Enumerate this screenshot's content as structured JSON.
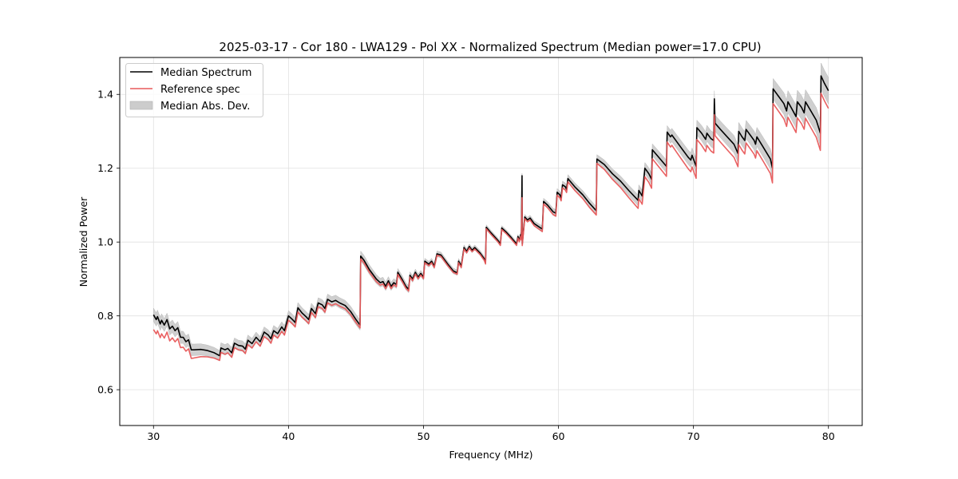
{
  "chart_data": {
    "type": "line",
    "title": "2025-03-17 - Cor 180 - LWA129 - Pol XX - Normalized Spectrum (Median power=17.0 CPU)",
    "xlabel": "Frequency (MHz)",
    "ylabel": "Normalized Power",
    "xlim": [
      27.5,
      82.5
    ],
    "ylim": [
      0.503,
      1.5
    ],
    "xticks": [
      30,
      40,
      50,
      60,
      70,
      80
    ],
    "xtick_labels": [
      "30",
      "40",
      "50",
      "60",
      "70",
      "80"
    ],
    "yticks": [
      0.6,
      0.8,
      1.0,
      1.2,
      1.4
    ],
    "ytick_labels": [
      "0.6",
      "0.8",
      "1.0",
      "1.2",
      "1.4"
    ],
    "grid": true,
    "legend_position": "top-left",
    "legend": [
      {
        "label": "Median Spectrum",
        "kind": "line",
        "color": "#000000"
      },
      {
        "label": "Reference spec",
        "kind": "line",
        "color": "#e8595a"
      },
      {
        "label": "Median Abs. Dev.",
        "kind": "band",
        "color": "#cccccc"
      }
    ],
    "series": [
      {
        "name": "Median Spectrum",
        "color": "#000000",
        "points": [
          [
            30.0,
            0.803
          ],
          [
            30.2,
            0.79
          ],
          [
            30.3,
            0.798
          ],
          [
            30.5,
            0.778
          ],
          [
            30.6,
            0.788
          ],
          [
            30.8,
            0.775
          ],
          [
            31.0,
            0.79
          ],
          [
            31.2,
            0.765
          ],
          [
            31.4,
            0.772
          ],
          [
            31.6,
            0.76
          ],
          [
            31.8,
            0.768
          ],
          [
            32.0,
            0.742
          ],
          [
            32.2,
            0.742
          ],
          [
            32.4,
            0.73
          ],
          [
            32.6,
            0.735
          ],
          [
            32.8,
            0.708
          ],
          [
            33.0,
            0.708
          ],
          [
            33.5,
            0.709
          ],
          [
            34.0,
            0.706
          ],
          [
            34.5,
            0.7
          ],
          [
            34.9,
            0.692
          ],
          [
            35.0,
            0.713
          ],
          [
            35.3,
            0.708
          ],
          [
            35.5,
            0.712
          ],
          [
            35.8,
            0.7
          ],
          [
            36.0,
            0.726
          ],
          [
            36.3,
            0.72
          ],
          [
            36.6,
            0.718
          ],
          [
            36.8,
            0.71
          ],
          [
            37.0,
            0.734
          ],
          [
            37.3,
            0.725
          ],
          [
            37.6,
            0.742
          ],
          [
            37.9,
            0.73
          ],
          [
            38.2,
            0.756
          ],
          [
            38.5,
            0.748
          ],
          [
            38.7,
            0.738
          ],
          [
            38.9,
            0.76
          ],
          [
            39.2,
            0.752
          ],
          [
            39.5,
            0.77
          ],
          [
            39.7,
            0.76
          ],
          [
            40.0,
            0.8
          ],
          [
            40.3,
            0.79
          ],
          [
            40.5,
            0.782
          ],
          [
            40.7,
            0.822
          ],
          [
            41.0,
            0.808
          ],
          [
            41.3,
            0.798
          ],
          [
            41.5,
            0.79
          ],
          [
            41.7,
            0.82
          ],
          [
            42.0,
            0.806
          ],
          [
            42.2,
            0.835
          ],
          [
            42.5,
            0.83
          ],
          [
            42.7,
            0.82
          ],
          [
            42.9,
            0.845
          ],
          [
            43.2,
            0.838
          ],
          [
            43.5,
            0.842
          ],
          [
            43.8,
            0.835
          ],
          [
            44.2,
            0.828
          ],
          [
            44.6,
            0.812
          ],
          [
            45.0,
            0.79
          ],
          [
            45.3,
            0.775
          ],
          [
            45.35,
            0.962
          ],
          [
            45.6,
            0.95
          ],
          [
            46.0,
            0.925
          ],
          [
            46.5,
            0.9
          ],
          [
            46.8,
            0.89
          ],
          [
            47.0,
            0.893
          ],
          [
            47.2,
            0.88
          ],
          [
            47.4,
            0.895
          ],
          [
            47.6,
            0.88
          ],
          [
            47.8,
            0.89
          ],
          [
            48.0,
            0.885
          ],
          [
            48.1,
            0.918
          ],
          [
            48.4,
            0.9
          ],
          [
            48.7,
            0.88
          ],
          [
            48.9,
            0.872
          ],
          [
            49.0,
            0.91
          ],
          [
            49.2,
            0.9
          ],
          [
            49.4,
            0.918
          ],
          [
            49.6,
            0.905
          ],
          [
            49.8,
            0.915
          ],
          [
            50.0,
            0.905
          ],
          [
            50.1,
            0.948
          ],
          [
            50.4,
            0.94
          ],
          [
            50.6,
            0.948
          ],
          [
            50.8,
            0.935
          ],
          [
            51.0,
            0.968
          ],
          [
            51.3,
            0.965
          ],
          [
            51.8,
            0.94
          ],
          [
            52.2,
            0.922
          ],
          [
            52.5,
            0.917
          ],
          [
            52.6,
            0.948
          ],
          [
            52.8,
            0.935
          ],
          [
            53.0,
            0.985
          ],
          [
            53.2,
            0.975
          ],
          [
            53.4,
            0.988
          ],
          [
            53.6,
            0.978
          ],
          [
            53.8,
            0.985
          ],
          [
            54.2,
            0.97
          ],
          [
            54.5,
            0.955
          ],
          [
            54.6,
            0.945
          ],
          [
            54.65,
            1.04
          ],
          [
            55.0,
            1.025
          ],
          [
            55.5,
            1.005
          ],
          [
            55.7,
            0.995
          ],
          [
            55.8,
            1.038
          ],
          [
            56.1,
            1.028
          ],
          [
            56.5,
            1.012
          ],
          [
            56.9,
            0.995
          ],
          [
            57.0,
            1.015
          ],
          [
            57.1,
            1.005
          ],
          [
            57.2,
            1.02
          ],
          [
            57.25,
            1.01
          ],
          [
            57.3,
            1.18
          ],
          [
            57.32,
            0.995
          ],
          [
            57.5,
            1.068
          ],
          [
            57.7,
            1.06
          ],
          [
            57.9,
            1.065
          ],
          [
            58.2,
            1.05
          ],
          [
            58.6,
            1.04
          ],
          [
            58.8,
            1.035
          ],
          [
            58.9,
            1.11
          ],
          [
            59.2,
            1.1
          ],
          [
            59.6,
            1.082
          ],
          [
            59.8,
            1.078
          ],
          [
            59.9,
            1.135
          ],
          [
            60.1,
            1.128
          ],
          [
            60.2,
            1.12
          ],
          [
            60.3,
            1.155
          ],
          [
            60.5,
            1.15
          ],
          [
            60.6,
            1.143
          ],
          [
            60.7,
            1.172
          ],
          [
            61.2,
            1.15
          ],
          [
            61.8,
            1.128
          ],
          [
            62.3,
            1.105
          ],
          [
            62.8,
            1.085
          ],
          [
            62.85,
            1.225
          ],
          [
            63.4,
            1.21
          ],
          [
            64.0,
            1.185
          ],
          [
            64.6,
            1.165
          ],
          [
            65.2,
            1.14
          ],
          [
            65.9,
            1.113
          ],
          [
            65.95,
            1.14
          ],
          [
            66.2,
            1.125
          ],
          [
            66.4,
            1.2
          ],
          [
            66.7,
            1.185
          ],
          [
            66.9,
            1.17
          ],
          [
            66.95,
            1.25
          ],
          [
            67.3,
            1.235
          ],
          [
            67.7,
            1.218
          ],
          [
            68.0,
            1.205
          ],
          [
            68.05,
            1.298
          ],
          [
            68.3,
            1.285
          ],
          [
            68.4,
            1.29
          ],
          [
            68.8,
            1.27
          ],
          [
            69.2,
            1.25
          ],
          [
            69.6,
            1.23
          ],
          [
            69.8,
            1.222
          ],
          [
            69.9,
            1.235
          ],
          [
            70.1,
            1.215
          ],
          [
            70.2,
            1.205
          ],
          [
            70.25,
            1.31
          ],
          [
            70.6,
            1.295
          ],
          [
            70.9,
            1.278
          ],
          [
            71.0,
            1.295
          ],
          [
            71.3,
            1.28
          ],
          [
            71.5,
            1.275
          ],
          [
            71.55,
            1.388
          ],
          [
            71.6,
            1.322
          ],
          [
            72.0,
            1.305
          ],
          [
            72.5,
            1.285
          ],
          [
            73.0,
            1.265
          ],
          [
            73.3,
            1.24
          ],
          [
            73.35,
            1.3
          ],
          [
            73.6,
            1.285
          ],
          [
            73.8,
            1.275
          ],
          [
            73.9,
            1.305
          ],
          [
            74.2,
            1.29
          ],
          [
            74.5,
            1.275
          ],
          [
            74.6,
            1.265
          ],
          [
            74.7,
            1.285
          ],
          [
            75.2,
            1.255
          ],
          [
            75.7,
            1.225
          ],
          [
            75.85,
            1.2
          ],
          [
            75.9,
            1.415
          ],
          [
            76.3,
            1.395
          ],
          [
            76.7,
            1.375
          ],
          [
            76.9,
            1.355
          ],
          [
            77.0,
            1.38
          ],
          [
            77.3,
            1.36
          ],
          [
            77.6,
            1.34
          ],
          [
            77.7,
            1.38
          ],
          [
            78.0,
            1.365
          ],
          [
            78.2,
            1.35
          ],
          [
            78.3,
            1.38
          ],
          [
            78.7,
            1.355
          ],
          [
            79.1,
            1.33
          ],
          [
            79.4,
            1.295
          ],
          [
            79.45,
            1.45
          ],
          [
            79.7,
            1.43
          ],
          [
            80.0,
            1.41
          ]
        ]
      },
      {
        "name": "Reference spec",
        "color": "#e8595a",
        "offsets": [
          [
            30.0,
            -0.04
          ],
          [
            33.0,
            -0.022
          ],
          [
            35.0,
            -0.012
          ],
          [
            40.0,
            -0.012
          ],
          [
            45.0,
            -0.008
          ],
          [
            50.0,
            -0.004
          ],
          [
            57.0,
            -0.004
          ],
          [
            60.0,
            -0.008
          ],
          [
            63.0,
            -0.012
          ],
          [
            66.0,
            -0.022
          ],
          [
            70.0,
            -0.032
          ],
          [
            75.0,
            -0.038
          ],
          [
            80.0,
            -0.048
          ]
        ]
      },
      {
        "name": "Median Abs. Dev.",
        "color": "#cccccc",
        "halfwidths": [
          [
            30.0,
            0.018
          ],
          [
            35.0,
            0.014
          ],
          [
            40.0,
            0.014
          ],
          [
            45.0,
            0.014
          ],
          [
            50.0,
            0.008
          ],
          [
            57.0,
            0.006
          ],
          [
            60.0,
            0.01
          ],
          [
            63.0,
            0.012
          ],
          [
            67.0,
            0.016
          ],
          [
            70.0,
            0.02
          ],
          [
            75.0,
            0.026
          ],
          [
            80.0,
            0.036
          ]
        ]
      }
    ]
  }
}
